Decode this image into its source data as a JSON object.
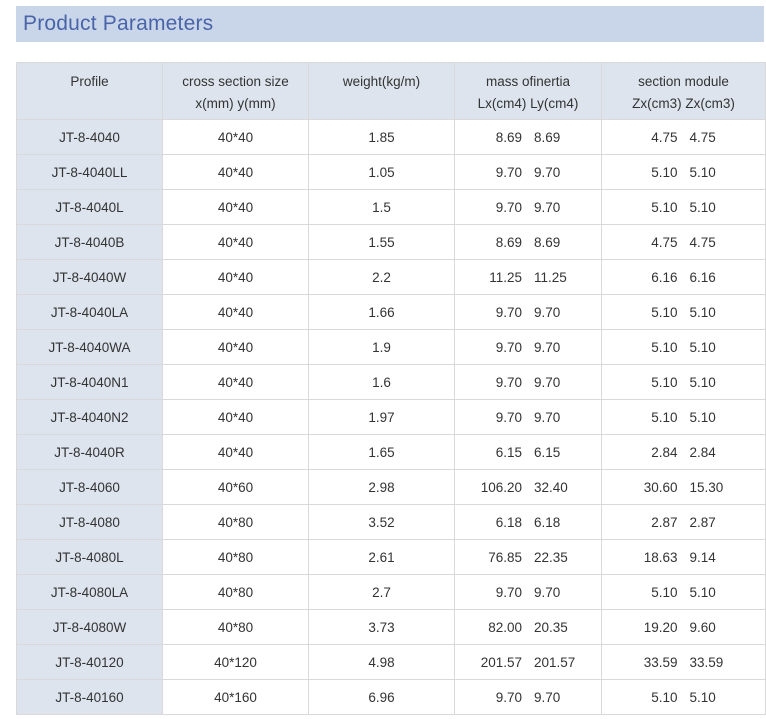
{
  "title": "Product Parameters",
  "headers": [
    {
      "line1": "Profile",
      "line2": ""
    },
    {
      "line1": "cross section size",
      "line2": "x(mm) y(mm)"
    },
    {
      "line1": "weight(kg/m)",
      "line2": ""
    },
    {
      "line1": "mass ofinertia",
      "line2": "Lx(cm4) Ly(cm4)"
    },
    {
      "line1": "section module",
      "line2": "Zx(cm3) Zx(cm3)"
    }
  ],
  "rows": [
    {
      "profile": "JT-8-4040",
      "size": "40*40",
      "weight": "1.85",
      "lx": "8.69",
      "ly": "8.69",
      "zx1": "4.75",
      "zx2": "4.75"
    },
    {
      "profile": "JT-8-4040LL",
      "size": "40*40",
      "weight": "1.05",
      "lx": "9.70",
      "ly": "9.70",
      "zx1": "5.10",
      "zx2": "5.10"
    },
    {
      "profile": "JT-8-4040L",
      "size": "40*40",
      "weight": "1.5",
      "lx": "9.70",
      "ly": "9.70",
      "zx1": "5.10",
      "zx2": "5.10"
    },
    {
      "profile": "JT-8-4040B",
      "size": "40*40",
      "weight": "1.55",
      "lx": "8.69",
      "ly": "8.69",
      "zx1": "4.75",
      "zx2": "4.75"
    },
    {
      "profile": "JT-8-4040W",
      "size": "40*40",
      "weight": "2.2",
      "lx": "11.25",
      "ly": "11.25",
      "zx1": "6.16",
      "zx2": "6.16"
    },
    {
      "profile": "JT-8-4040LA",
      "size": "40*40",
      "weight": "1.66",
      "lx": "9.70",
      "ly": "9.70",
      "zx1": "5.10",
      "zx2": "5.10"
    },
    {
      "profile": "JT-8-4040WA",
      "size": "40*40",
      "weight": "1.9",
      "lx": "9.70",
      "ly": "9.70",
      "zx1": "5.10",
      "zx2": "5.10"
    },
    {
      "profile": "JT-8-4040N1",
      "size": "40*40",
      "weight": "1.6",
      "lx": "9.70",
      "ly": "9.70",
      "zx1": "5.10",
      "zx2": "5.10"
    },
    {
      "profile": "JT-8-4040N2",
      "size": "40*40",
      "weight": "1.97",
      "lx": "9.70",
      "ly": "9.70",
      "zx1": "5.10",
      "zx2": "5.10"
    },
    {
      "profile": "JT-8-4040R",
      "size": "40*40",
      "weight": "1.65",
      "lx": "6.15",
      "ly": "6.15",
      "zx1": "2.84",
      "zx2": "2.84"
    },
    {
      "profile": "JT-8-4060",
      "size": "40*60",
      "weight": "2.98",
      "lx": "106.20",
      "ly": "32.40",
      "zx1": "30.60",
      "zx2": "15.30"
    },
    {
      "profile": "JT-8-4080",
      "size": "40*80",
      "weight": "3.52",
      "lx": "6.18",
      "ly": "6.18",
      "zx1": "2.87",
      "zx2": "2.87"
    },
    {
      "profile": "JT-8-4080L",
      "size": "40*80",
      "weight": "2.61",
      "lx": "76.85",
      "ly": "22.35",
      "zx1": "18.63",
      "zx2": "9.14"
    },
    {
      "profile": "JT-8-4080LA",
      "size": "40*80",
      "weight": "2.7",
      "lx": "9.70",
      "ly": "9.70",
      "zx1": "5.10",
      "zx2": "5.10"
    },
    {
      "profile": "JT-8-4080W",
      "size": "40*80",
      "weight": "3.73",
      "lx": "82.00",
      "ly": "20.35",
      "zx1": "19.20",
      "zx2": "9.60"
    },
    {
      "profile": "JT-8-40120",
      "size": "40*120",
      "weight": "4.98",
      "lx": "201.57",
      "ly": "201.57",
      "zx1": "33.59",
      "zx2": "33.59"
    },
    {
      "profile": "JT-8-40160",
      "size": "40*160",
      "weight": "6.96",
      "lx": "9.70",
      "ly": "9.70",
      "zx1": "5.10",
      "zx2": "5.10"
    }
  ],
  "colors": {
    "title_bg": "#c9d6ea",
    "title_text": "#4a64a8",
    "header_bg": "#dde4ee",
    "border": "#d9d9d9",
    "text": "#333333"
  }
}
